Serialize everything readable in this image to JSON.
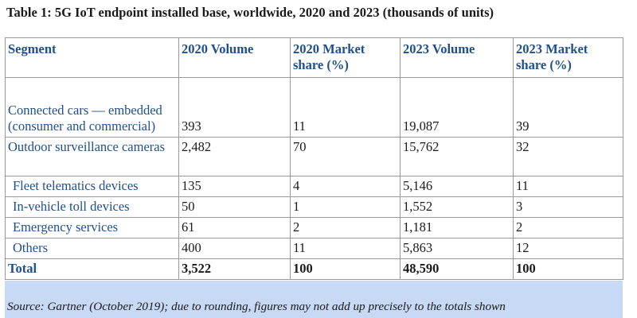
{
  "title": "Table 1: 5G IoT endpoint installed base, worldwide, 2020 and 2023 (thousands of units)",
  "table": {
    "headers": [
      "Segment",
      "2020 Volume",
      "2020 Market share (%)",
      "2023 Volume",
      "2023 Market share (%)"
    ],
    "rows": [
      [
        "Connected cars — embedded (consumer and commercial)",
        "393",
        "11",
        "19,087",
        "39"
      ],
      [
        "Outdoor surveillance cameras",
        "2,482",
        "70",
        "15,762",
        "32"
      ],
      [
        "Fleet telematics devices",
        "135",
        "4",
        "5,146",
        "11"
      ],
      [
        "In-vehicle toll devices",
        "50",
        "1",
        "1,552",
        "3"
      ],
      [
        "Emergency services",
        "61",
        "2",
        "1,181",
        "2"
      ],
      [
        "Others",
        "400",
        "11",
        "5,863",
        "12"
      ]
    ],
    "total": [
      "Total",
      "3,522",
      "100",
      "48,590",
      "100"
    ]
  },
  "source": "Source: Gartner (October 2019); due to rounding, figures may not add up precisely to the totals shown"
}
